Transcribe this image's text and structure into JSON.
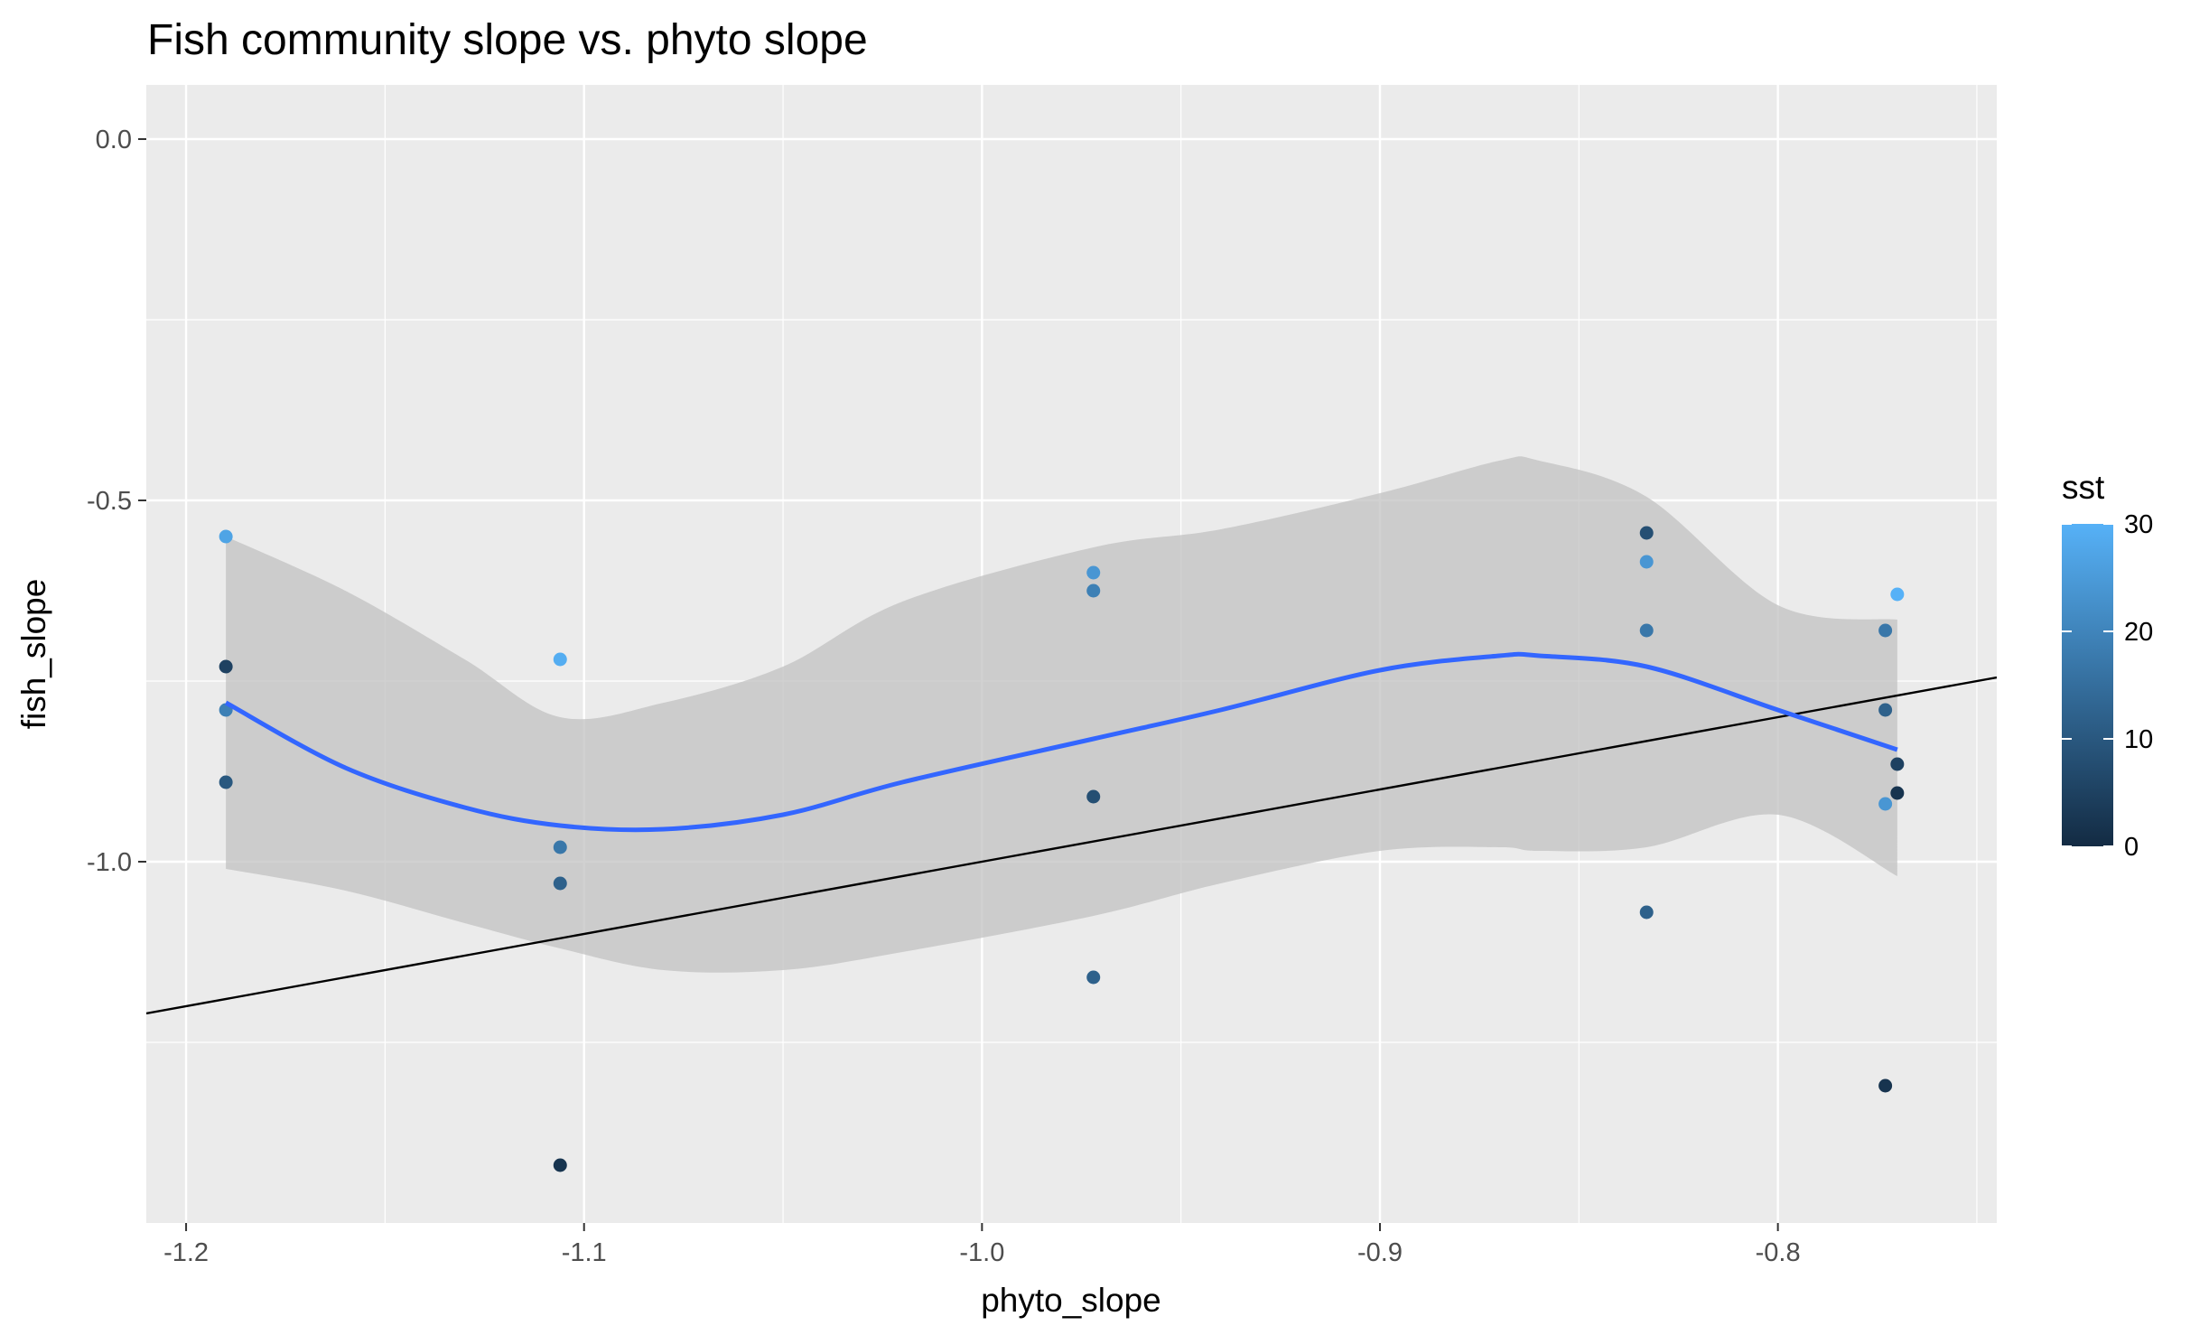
{
  "chart_data": {
    "type": "scatter",
    "title": "Fish community slope vs. phyto slope",
    "xlabel": "phyto_slope",
    "ylabel": "fish_slope",
    "xlim": [
      -1.21,
      -0.745
    ],
    "ylim": [
      -1.5,
      0.075
    ],
    "x_ticks": [
      -1.2,
      -1.1,
      -1.0,
      -0.9,
      -0.8
    ],
    "x_tick_labels": [
      "-1.2",
      "-1.1",
      "-1.0",
      "-0.9",
      "-0.8"
    ],
    "y_ticks": [
      0.0,
      -0.5,
      -1.0
    ],
    "y_tick_labels": [
      "0.0",
      "-0.5",
      "-1.0"
    ],
    "grid": true,
    "background": "#ebebeb",
    "points": [
      {
        "x": -1.19,
        "y": -0.55,
        "sst": 27
      },
      {
        "x": -1.19,
        "y": -0.73,
        "sst": 5
      },
      {
        "x": -1.19,
        "y": -0.79,
        "sst": 19
      },
      {
        "x": -1.19,
        "y": -0.89,
        "sst": 10
      },
      {
        "x": -1.106,
        "y": -0.72,
        "sst": 29
      },
      {
        "x": -1.106,
        "y": -0.98,
        "sst": 17
      },
      {
        "x": -1.106,
        "y": -1.03,
        "sst": 12
      },
      {
        "x": -1.106,
        "y": -1.42,
        "sst": 2
      },
      {
        "x": -0.972,
        "y": -0.6,
        "sst": 24
      },
      {
        "x": -0.972,
        "y": -0.625,
        "sst": 19
      },
      {
        "x": -0.972,
        "y": -0.91,
        "sst": 8
      },
      {
        "x": -0.972,
        "y": -1.16,
        "sst": 12
      },
      {
        "x": -0.833,
        "y": -0.545,
        "sst": 8
      },
      {
        "x": -0.833,
        "y": -0.585,
        "sst": 24
      },
      {
        "x": -0.833,
        "y": -0.68,
        "sst": 17
      },
      {
        "x": -0.833,
        "y": -1.07,
        "sst": 12
      },
      {
        "x": -0.773,
        "y": -0.68,
        "sst": 17
      },
      {
        "x": -0.773,
        "y": -0.79,
        "sst": 12
      },
      {
        "x": -0.773,
        "y": -0.92,
        "sst": 24
      },
      {
        "x": -0.773,
        "y": -1.31,
        "sst": 2
      },
      {
        "x": -0.77,
        "y": -0.63,
        "sst": 30
      },
      {
        "x": -0.77,
        "y": -0.865,
        "sst": 5
      },
      {
        "x": -0.77,
        "y": -0.905,
        "sst": 2
      }
    ],
    "smooth": {
      "method": "loess",
      "color": "#3366ff",
      "ribbon_color": "#bfbfbf",
      "x": [
        -1.19,
        -1.16,
        -1.13,
        -1.106,
        -1.08,
        -1.05,
        -1.02,
        -0.972,
        -0.94,
        -0.9,
        -0.87,
        -0.86,
        -0.833,
        -0.8,
        -0.77
      ],
      "y": [
        -0.78,
        -0.87,
        -0.925,
        -0.95,
        -0.955,
        -0.935,
        -0.89,
        -0.83,
        -0.79,
        -0.735,
        -0.715,
        -0.715,
        -0.73,
        -0.79,
        -0.845
      ],
      "ymin": [
        -1.01,
        -1.04,
        -1.085,
        -1.12,
        -1.15,
        -1.15,
        -1.125,
        -1.075,
        -1.03,
        -0.985,
        -0.98,
        -0.985,
        -0.98,
        -0.935,
        -1.02
      ],
      "ymax": [
        -0.55,
        -0.625,
        -0.72,
        -0.8,
        -0.78,
        -0.73,
        -0.64,
        -0.565,
        -0.54,
        -0.49,
        -0.445,
        -0.445,
        -0.495,
        -0.645,
        -0.665
      ]
    },
    "reference_line": {
      "color": "#000000",
      "x": [
        -1.21,
        -0.745
      ],
      "y": [
        -1.21,
        -0.745
      ]
    },
    "legend": {
      "title": "sst",
      "placement": "right",
      "type": "colorbar",
      "min": 0,
      "max": 30,
      "ticks": [
        0,
        10,
        20,
        30
      ],
      "tick_labels": [
        "0",
        "10",
        "20",
        "30"
      ],
      "low_color": "#132b43",
      "high_color": "#56b1f7"
    }
  }
}
